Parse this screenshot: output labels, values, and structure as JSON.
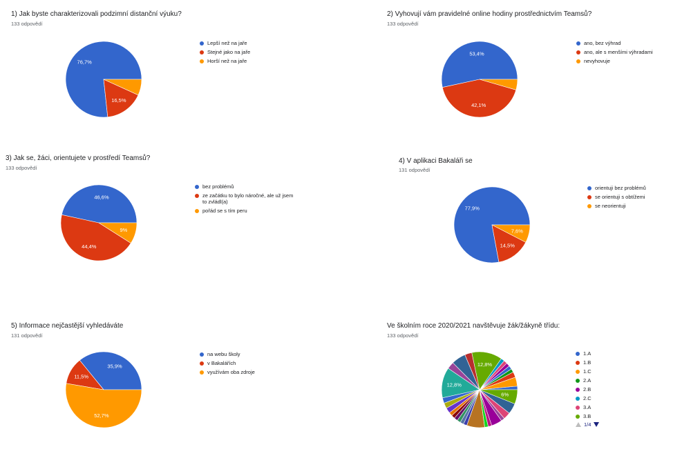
{
  "chart_data": [
    {
      "type": "pie",
      "title": "1) Jak byste charakterizovali podzimní distanční výuku?",
      "subtitle": "133 odpovědí",
      "categories": [
        "Lepší než na jaře",
        "Stejné jako na jaře",
        "Horší než na jaře"
      ],
      "values": [
        76.7,
        16.5,
        6.8
      ],
      "labels": [
        "76,7%",
        "16,5%",
        ""
      ],
      "colors": [
        "#3366cc",
        "#dc3912",
        "#ff9900"
      ],
      "legend_position": "right"
    },
    {
      "type": "pie",
      "title": "2) Vyhovují vám pravidelné online hodiny prostřednictvím Teamsů?",
      "subtitle": "133 odpovědí",
      "categories": [
        "ano, bez výhrad",
        "ano, ale s menšími výhradami",
        "nevyhovuje"
      ],
      "values": [
        53.4,
        42.1,
        4.5
      ],
      "labels": [
        "53,4%",
        "42,1%",
        ""
      ],
      "colors": [
        "#3366cc",
        "#dc3912",
        "#ff9900"
      ],
      "legend_position": "right"
    },
    {
      "type": "pie",
      "title": "3) Jak se, žáci, orientujete v prostředí Teamsů?",
      "subtitle": "133 odpovědí",
      "categories": [
        "bez problémů",
        "ze začátku to bylo náročné, ale už jsem to zvládl(a)",
        "pořád se s tím peru"
      ],
      "legend_lines": [
        [
          "bez problémů"
        ],
        [
          "ze začátku to bylo náročné, ale už jsem",
          "to zvládl(a)"
        ],
        [
          "pořád se s tím peru"
        ]
      ],
      "values": [
        46.6,
        44.4,
        9.0
      ],
      "labels": [
        "46,6%",
        "44,4%",
        "9%"
      ],
      "colors": [
        "#3366cc",
        "#dc3912",
        "#ff9900"
      ],
      "legend_position": "right"
    },
    {
      "type": "pie",
      "title": "4) V aplikaci Bakaláři se",
      "subtitle": "131 odpovědí",
      "categories": [
        "orientuji bez problémů",
        "se orientuji s obtížemi",
        "se neorientuji"
      ],
      "values": [
        77.9,
        14.5,
        7.6
      ],
      "labels": [
        "77,9%",
        "14,5%",
        "7,6%"
      ],
      "colors": [
        "#3366cc",
        "#dc3912",
        "#ff9900"
      ],
      "legend_position": "right"
    },
    {
      "type": "pie",
      "title": "5) Informace nejčastější vyhledáváte",
      "subtitle": "131 odpovědí",
      "categories": [
        "na webu školy",
        "v Bakalářích",
        "využívám oba zdroje"
      ],
      "values": [
        35.9,
        11.5,
        52.7
      ],
      "labels": [
        "35,9%",
        "11,5%",
        "52,7%"
      ],
      "colors": [
        "#3366cc",
        "#dc3912",
        "#ff9900"
      ],
      "legend_position": "right"
    },
    {
      "type": "pie",
      "title": "Ve školním roce 2020/2021 navštěvuje žák/žákyně třídu:",
      "subtitle": "133 odpovědí",
      "categories": [
        "1.A",
        "1.B",
        "1.C",
        "2.A",
        "2.B",
        "2.C",
        "3.A",
        "3.B"
      ],
      "slices": [
        {
          "value": 1.5,
          "color": "#3366cc",
          "label": ""
        },
        {
          "value": 3.8,
          "color": "#ff9900",
          "label": ""
        },
        {
          "value": 2.3,
          "color": "#dc3912",
          "label": ""
        },
        {
          "value": 1.5,
          "color": "#109618",
          "label": ""
        },
        {
          "value": 1.5,
          "color": "#3366cc",
          "label": ""
        },
        {
          "value": 1.5,
          "color": "#990099",
          "label": ""
        },
        {
          "value": 1.5,
          "color": "#dd4477",
          "label": ""
        },
        {
          "value": 1.5,
          "color": "#0099c6",
          "label": ""
        },
        {
          "value": 12.8,
          "color": "#66aa00",
          "label": "12,8%"
        },
        {
          "value": 3.0,
          "color": "#b82e2e",
          "label": ""
        },
        {
          "value": 6.0,
          "color": "#316395",
          "label": ""
        },
        {
          "value": 3.0,
          "color": "#994499",
          "label": ""
        },
        {
          "value": 12.8,
          "color": "#22aa99",
          "label": "12,8%"
        },
        {
          "value": 2.3,
          "color": "#3366cc",
          "label": ""
        },
        {
          "value": 2.3,
          "color": "#aaaa11",
          "label": ""
        },
        {
          "value": 2.3,
          "color": "#6633cc",
          "label": ""
        },
        {
          "value": 1.5,
          "color": "#e67300",
          "label": ""
        },
        {
          "value": 1.5,
          "color": "#8b0707",
          "label": ""
        },
        {
          "value": 1.5,
          "color": "#651067",
          "label": ""
        },
        {
          "value": 1.5,
          "color": "#329262",
          "label": ""
        },
        {
          "value": 1.5,
          "color": "#5574a6",
          "label": ""
        },
        {
          "value": 1.5,
          "color": "#3b3eac",
          "label": ""
        },
        {
          "value": 7.5,
          "color": "#b77322",
          "label": ""
        },
        {
          "value": 1.5,
          "color": "#16d620",
          "label": ""
        },
        {
          "value": 1.5,
          "color": "#b91383",
          "label": ""
        },
        {
          "value": 4.5,
          "color": "#990099",
          "label": ""
        },
        {
          "value": 1.5,
          "color": "#994499",
          "label": ""
        },
        {
          "value": 3.0,
          "color": "#dd4477",
          "label": ""
        },
        {
          "value": 4.5,
          "color": "#316395",
          "label": ""
        },
        {
          "value": 6.0,
          "color": "#66aa00",
          "label": "6%"
        }
      ],
      "legend": [
        {
          "label": "1.A",
          "color": "#3366cc"
        },
        {
          "label": "1.B",
          "color": "#dc3912"
        },
        {
          "label": "1.C",
          "color": "#ff9900"
        },
        {
          "label": "2.A",
          "color": "#109618"
        },
        {
          "label": "2.B",
          "color": "#990099"
        },
        {
          "label": "2.C",
          "color": "#0099c6"
        },
        {
          "label": "3.A",
          "color": "#dd4477"
        },
        {
          "label": "3.B",
          "color": "#66aa00"
        }
      ],
      "legend_position": "right",
      "pager": "1/4"
    }
  ]
}
